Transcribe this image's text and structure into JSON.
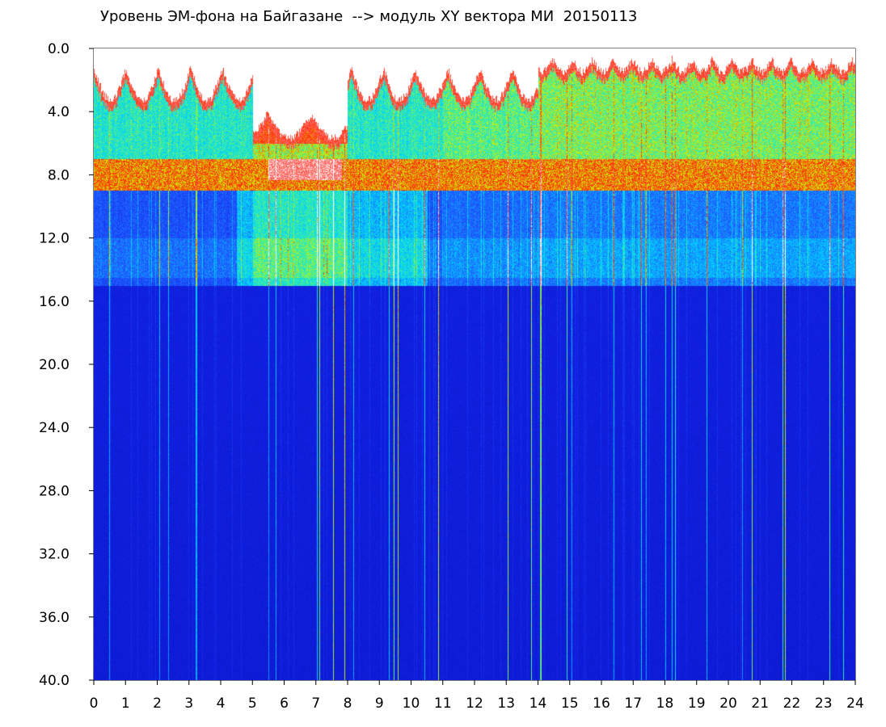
{
  "chart_data": {
    "type": "heatmap",
    "title": "Уровень ЭМ-фона на Байгазане  --> модуль XY вектора МИ  20150113",
    "xlabel": "",
    "ylabel": "",
    "xlim": [
      0,
      24
    ],
    "ylim": [
      0,
      40
    ],
    "y_axis_inverted": true,
    "x_ticks": [
      0,
      1,
      2,
      3,
      4,
      5,
      6,
      7,
      8,
      9,
      10,
      11,
      12,
      13,
      14,
      15,
      16,
      17,
      18,
      19,
      20,
      21,
      22,
      23,
      24
    ],
    "y_ticks": [
      "0.0",
      "4.0",
      "8.0",
      "12.0",
      "16.0",
      "20.0",
      "24.0",
      "28.0",
      "32.0",
      "36.0",
      "40.0"
    ],
    "colorscale": [
      "#0a14d2",
      "#1e5aff",
      "#00c8ff",
      "#3cf0a0",
      "#d2f000",
      "#ff2800",
      "#ffffff"
    ],
    "grid": false,
    "legend": "none",
    "description_bands": [
      {
        "y_from": 0.0,
        "y_to": 2.0,
        "level": "white (saturated)"
      },
      {
        "y_from": 2.0,
        "y_to": 7.0,
        "level": "cyan-green-red"
      },
      {
        "y_from": 7.0,
        "y_to": 9.0,
        "level": "red-yellow band"
      },
      {
        "y_from": 9.0,
        "y_to": 15.0,
        "level": "blue with cyan patches"
      },
      {
        "y_from": 15.0,
        "y_to": 40.0,
        "level": "deep blue"
      }
    ]
  }
}
